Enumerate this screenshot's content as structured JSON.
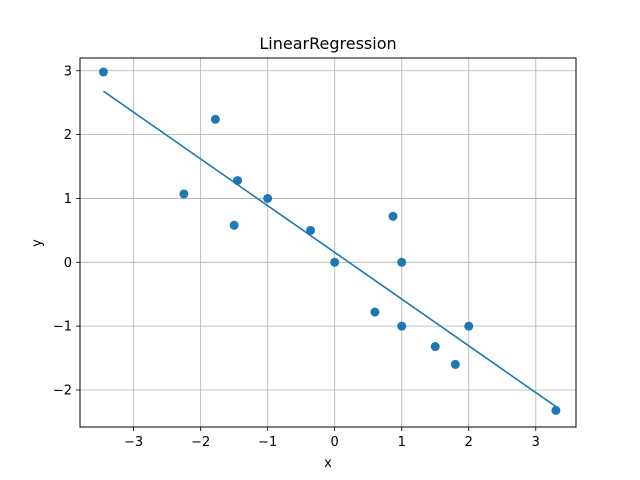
{
  "chart_data": {
    "type": "scatter",
    "title": "LinearRegression",
    "xlabel": "x",
    "ylabel": "y",
    "xlim": [
      -3.8,
      3.6
    ],
    "ylim": [
      -2.58,
      3.2
    ],
    "xticks": [
      -3,
      -2,
      -1,
      0,
      1,
      2,
      3
    ],
    "xtick_labels": [
      "−3",
      "−2",
      "−1",
      "0",
      "1",
      "2",
      "3"
    ],
    "yticks": [
      -2,
      -1,
      0,
      1,
      2,
      3
    ],
    "ytick_labels": [
      "−2",
      "−1",
      "0",
      "1",
      "2",
      "3"
    ],
    "grid": true,
    "color": "#1f77b4",
    "points": [
      {
        "x": -3.45,
        "y": 2.98
      },
      {
        "x": -2.25,
        "y": 1.07
      },
      {
        "x": -1.78,
        "y": 2.24
      },
      {
        "x": -1.5,
        "y": 0.58
      },
      {
        "x": -1.45,
        "y": 1.28
      },
      {
        "x": -1.0,
        "y": 1.0
      },
      {
        "x": -0.36,
        "y": 0.5
      },
      {
        "x": 0.0,
        "y": 0.0
      },
      {
        "x": 0.6,
        "y": -0.78
      },
      {
        "x": 0.87,
        "y": 0.72
      },
      {
        "x": 1.0,
        "y": 0.0
      },
      {
        "x": 1.0,
        "y": -1.0
      },
      {
        "x": 1.5,
        "y": -1.32
      },
      {
        "x": 1.8,
        "y": -1.6
      },
      {
        "x": 2.0,
        "y": -1.0
      },
      {
        "x": 3.3,
        "y": -2.32
      }
    ],
    "fit_line": [
      {
        "x": -3.45,
        "y": 2.68
      },
      {
        "x": 3.3,
        "y": -2.26
      }
    ]
  }
}
